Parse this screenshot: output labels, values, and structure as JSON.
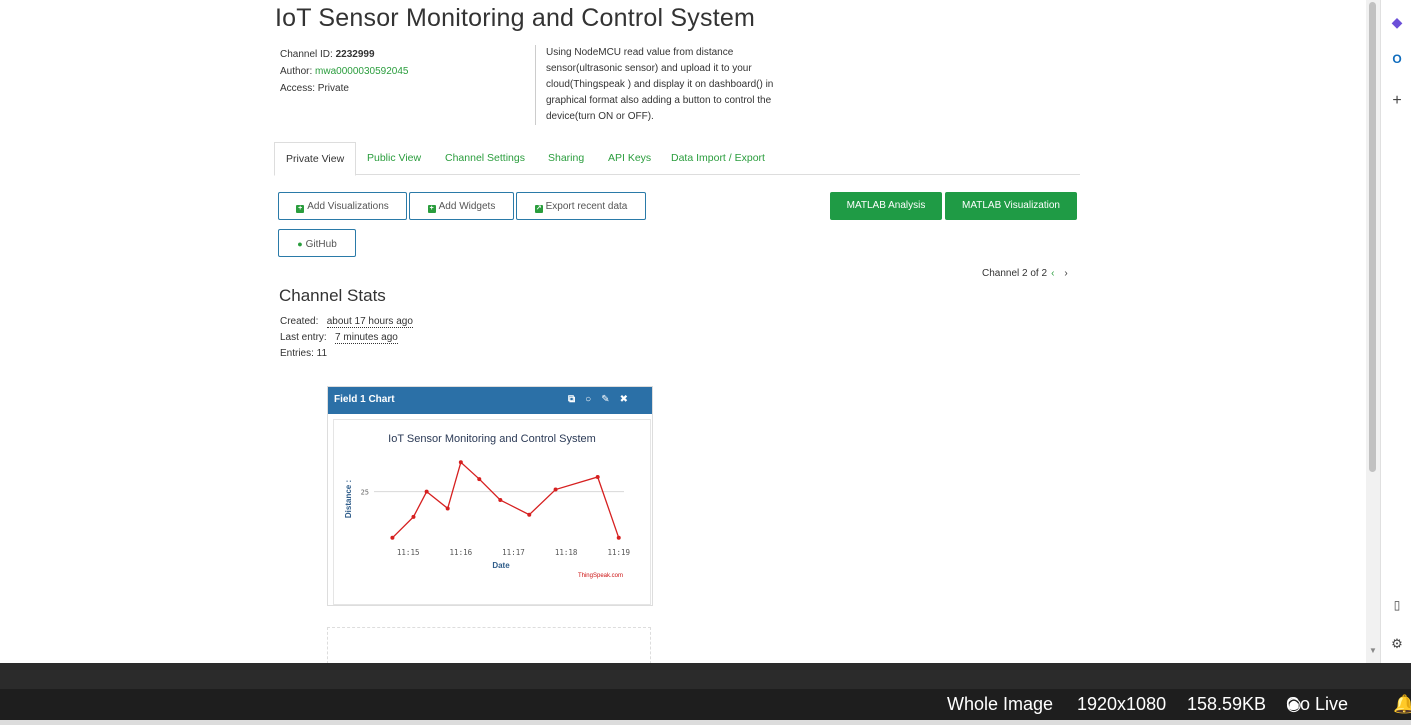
{
  "header": {
    "title": "IoT Sensor Monitoring and Control System",
    "channel_id_label": "Channel ID:",
    "channel_id": "2232999",
    "author_label": "Author:",
    "author": "mwa0000030592045",
    "access": "Access: Private",
    "description": "Using NodeMCU read value from distance sensor(ultrasonic sensor) and upload it to your cloud(Thingspeak ) and display it on dashboard() in graphical format also adding a button to control the device(turn ON or OFF)."
  },
  "tabs": [
    "Private View",
    "Public View",
    "Channel Settings",
    "Sharing",
    "API Keys",
    "Data Import / Export"
  ],
  "toolbar": {
    "add_visualizations": "Add Visualizations",
    "add_widgets": "Add Widgets",
    "export_recent": "Export recent data",
    "github": "GitHub",
    "matlab_analysis": "MATLAB Analysis",
    "matlab_visualization": "MATLAB Visualization"
  },
  "channel_nav": "Channel 2 of 2",
  "stats": {
    "heading": "Channel Stats",
    "created_label": "Created:",
    "created": "about 17 hours ago",
    "last_entry_label": "Last entry:",
    "last_entry": "7 minutes ago",
    "entries": "Entries: 11"
  },
  "widget": {
    "title": "Field 1 Chart"
  },
  "chart_data": {
    "type": "line",
    "title": "IoT Sensor Monitoring and Control System",
    "xlabel": "Date",
    "ylabel": "Distance :",
    "x_ticks": [
      "11:15",
      "11:16",
      "11:17",
      "11:18",
      "11:19"
    ],
    "y_ticks": [
      25
    ],
    "credit": "ThingSpeak.com",
    "color": "#d62020",
    "series": [
      {
        "x": [
          14.7,
          15.1,
          15.35,
          15.75,
          16.0,
          16.35,
          16.75,
          17.3,
          17.8,
          18.6,
          19.0
        ],
        "y": [
          14.0,
          19.0,
          25.0,
          21.0,
          32.0,
          28.0,
          23.0,
          19.5,
          25.5,
          28.5,
          14.0
        ]
      }
    ],
    "xlim": [
      14.35,
      19.1
    ],
    "ylim": [
      13.0,
      33.5
    ]
  },
  "status_bar": {
    "whole_image": "Whole Image",
    "resolution": "1920x1080",
    "size": "158.59KB",
    "go_live": "Go Live"
  }
}
